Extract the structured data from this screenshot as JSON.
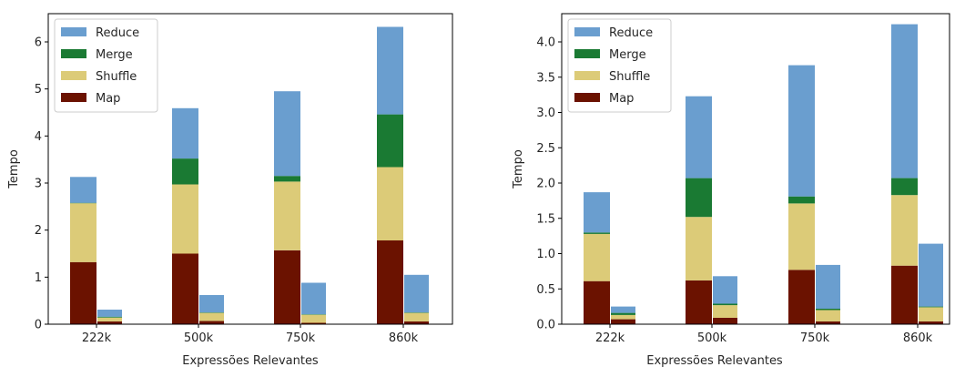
{
  "legend_order": [
    "Reduce",
    "Merge",
    "Shuffle",
    "Map"
  ],
  "colors": {
    "Map": "#6b1200",
    "Shuffle": "#dccb78",
    "Merge": "#1a7a33",
    "Reduce": "#6a9ecf"
  },
  "chart_data": [
    {
      "type": "bar",
      "stacked": true,
      "xlabel": "Expressões Relevantes",
      "ylabel": "Tempo",
      "categories": [
        "222k",
        "500k",
        "750k",
        "860k"
      ],
      "ylim": [
        0,
        6.6
      ],
      "yticks": [
        "0",
        "1",
        "2",
        "3",
        "4",
        "5",
        "6"
      ],
      "legend_position": "top-left",
      "groups": [
        {
          "name": "wide",
          "stacks": [
            {
              "Map": 1.32,
              "Shuffle": 1.25,
              "Merge": 0.01,
              "Reduce": 0.55
            },
            {
              "Map": 1.5,
              "Shuffle": 1.47,
              "Merge": 0.55,
              "Reduce": 1.07
            },
            {
              "Map": 1.57,
              "Shuffle": 1.46,
              "Merge": 0.12,
              "Reduce": 1.8
            },
            {
              "Map": 1.78,
              "Shuffle": 1.56,
              "Merge": 1.12,
              "Reduce": 1.86
            }
          ]
        },
        {
          "name": "narrow",
          "stacks": [
            {
              "Map": 0.06,
              "Shuffle": 0.08,
              "Merge": 0.02,
              "Reduce": 0.15
            },
            {
              "Map": 0.07,
              "Shuffle": 0.17,
              "Merge": 0.01,
              "Reduce": 0.37
            },
            {
              "Map": 0.03,
              "Shuffle": 0.17,
              "Merge": 0.01,
              "Reduce": 0.67
            },
            {
              "Map": 0.06,
              "Shuffle": 0.18,
              "Merge": 0.01,
              "Reduce": 0.8
            }
          ]
        }
      ]
    },
    {
      "type": "bar",
      "stacked": true,
      "xlabel": "Expressões Relevantes",
      "ylabel": "Tempo",
      "categories": [
        "222k",
        "500k",
        "750k",
        "860k"
      ],
      "ylim": [
        0,
        4.4
      ],
      "yticks": [
        "0.0",
        "0.5",
        "1.0",
        "1.5",
        "2.0",
        "2.5",
        "3.0",
        "3.5",
        "4.0"
      ],
      "legend_position": "top-left",
      "groups": [
        {
          "name": "wide",
          "stacks": [
            {
              "Map": 0.61,
              "Shuffle": 0.67,
              "Merge": 0.02,
              "Reduce": 0.57
            },
            {
              "Map": 0.62,
              "Shuffle": 0.9,
              "Merge": 0.55,
              "Reduce": 1.16
            },
            {
              "Map": 0.77,
              "Shuffle": 0.94,
              "Merge": 0.1,
              "Reduce": 1.86
            },
            {
              "Map": 0.83,
              "Shuffle": 1.0,
              "Merge": 0.24,
              "Reduce": 2.18
            }
          ]
        },
        {
          "name": "narrow",
          "stacks": [
            {
              "Map": 0.07,
              "Shuffle": 0.06,
              "Merge": 0.03,
              "Reduce": 0.09
            },
            {
              "Map": 0.09,
              "Shuffle": 0.18,
              "Merge": 0.02,
              "Reduce": 0.39
            },
            {
              "Map": 0.04,
              "Shuffle": 0.16,
              "Merge": 0.02,
              "Reduce": 0.62
            },
            {
              "Map": 0.04,
              "Shuffle": 0.2,
              "Merge": 0.01,
              "Reduce": 0.89
            }
          ]
        }
      ]
    }
  ]
}
